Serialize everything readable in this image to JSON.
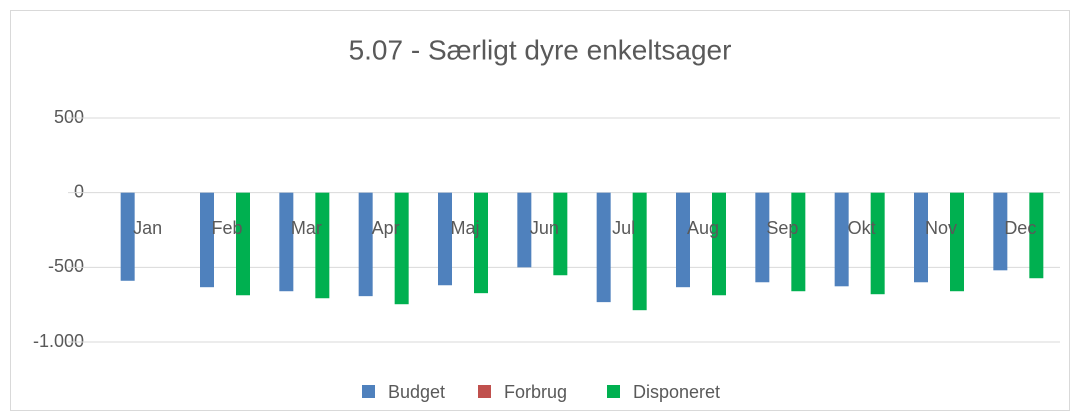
{
  "chart_data": {
    "type": "bar",
    "title": "5.07 - Særligt dyre enkeltsager",
    "categories": [
      "Jan",
      "Feb",
      "Mar",
      "Apr",
      "Maj",
      "Jun",
      "Jul",
      "Aug",
      "Sep",
      "Okt",
      "Nov",
      "Dec"
    ],
    "series": [
      {
        "name": "Budget",
        "color": "#4f81bd",
        "values": [
          -590,
          -633,
          -660,
          -693,
          -620,
          -500,
          -733,
          -633,
          -600,
          -627,
          -600,
          -520
        ]
      },
      {
        "name": "Forbrug",
        "color": "#c0504d",
        "values": [
          null,
          null,
          null,
          null,
          null,
          null,
          null,
          null,
          null,
          null,
          null,
          null
        ]
      },
      {
        "name": "Disponeret",
        "color": "#00b050",
        "values": [
          null,
          -687,
          -707,
          -747,
          -673,
          -553,
          -787,
          -687,
          -660,
          -680,
          -660,
          -573
        ]
      }
    ],
    "ylim": [
      -1000,
      500
    ],
    "yticks": [
      {
        "value": -1000,
        "label": "-1.000"
      },
      -500,
      0,
      500
    ],
    "grid": true,
    "legend": "bottom"
  }
}
